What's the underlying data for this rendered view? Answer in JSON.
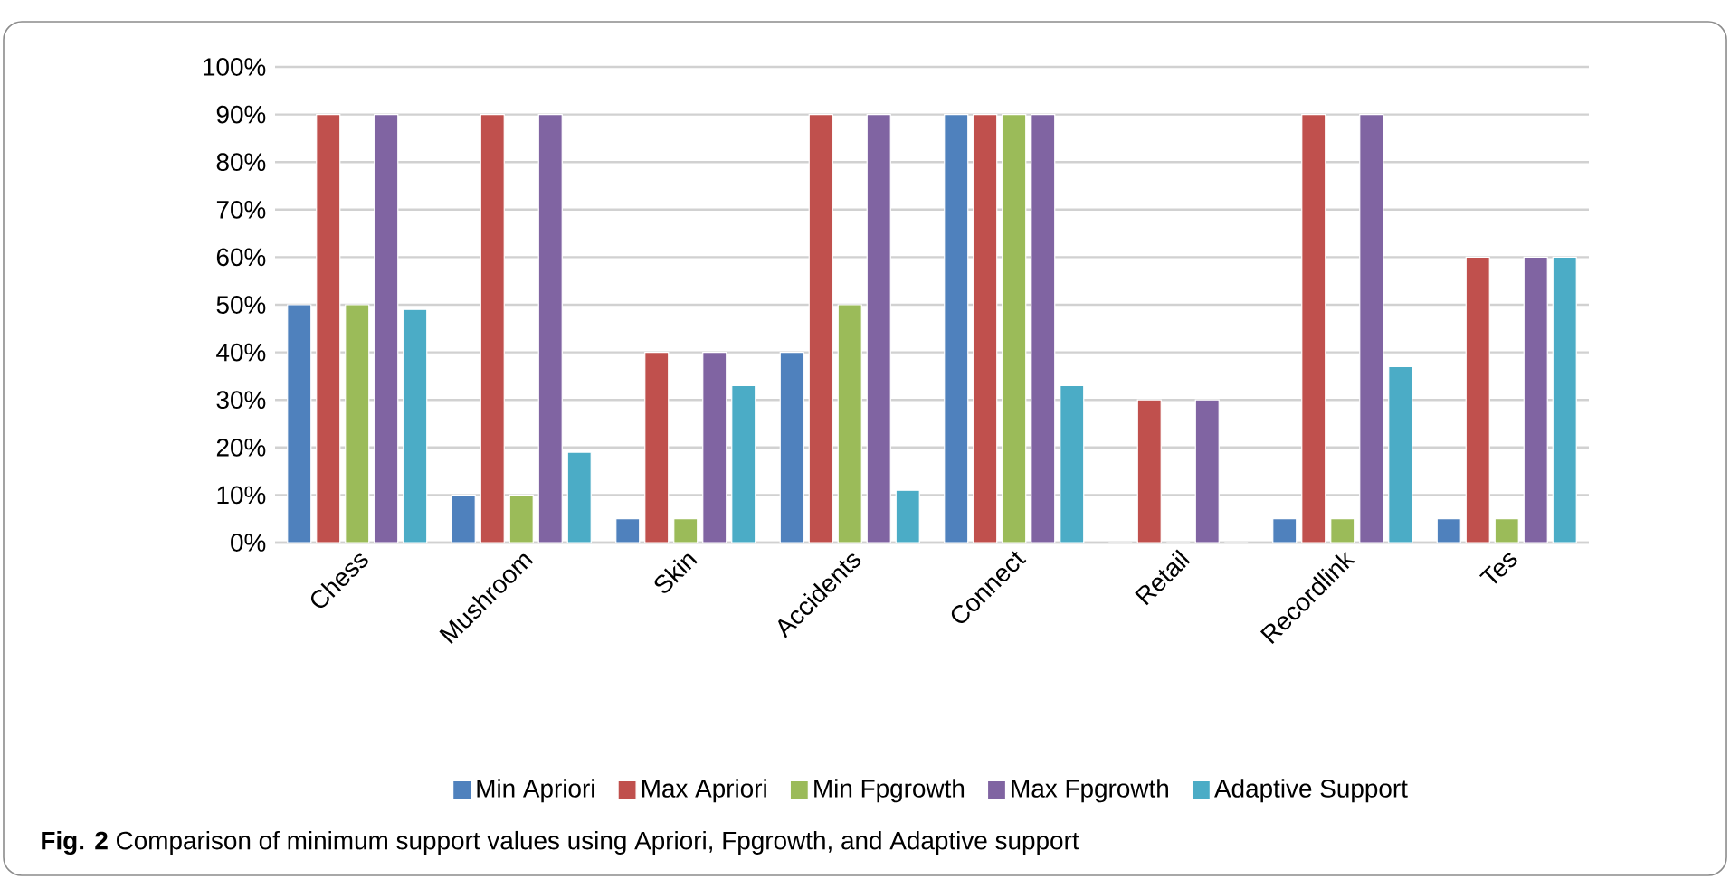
{
  "chart_data": {
    "type": "bar",
    "categories": [
      "Chess",
      "Mushroom",
      "Skin",
      "Accidents",
      "Connect",
      "Retail",
      "Recordlink",
      "Tes"
    ],
    "series": [
      {
        "name": "Min Apriori",
        "color": "#4f81bd",
        "values": [
          50,
          10,
          5,
          40,
          90,
          0,
          5,
          5
        ]
      },
      {
        "name": "Max Apriori",
        "color": "#c0504d",
        "values": [
          90,
          90,
          40,
          90,
          90,
          30,
          90,
          60
        ]
      },
      {
        "name": "Min Fpgrowth",
        "color": "#9bbb59",
        "values": [
          50,
          10,
          5,
          50,
          90,
          0,
          5,
          5
        ]
      },
      {
        "name": "Max Fpgrowth",
        "color": "#8064a2",
        "values": [
          90,
          90,
          40,
          90,
          90,
          30,
          90,
          60
        ]
      },
      {
        "name": "Adaptive Support",
        "color": "#4bacc6",
        "values": [
          49,
          19,
          33,
          11,
          33,
          0,
          37,
          60
        ]
      }
    ],
    "ylim": [
      0,
      100
    ],
    "yticks": [
      {
        "value": 0,
        "label": "0%"
      },
      {
        "value": 10,
        "label": "10%"
      },
      {
        "value": 20,
        "label": "20%"
      },
      {
        "value": 30,
        "label": "30%"
      },
      {
        "value": 40,
        "label": "40%"
      },
      {
        "value": 50,
        "label": "50%"
      },
      {
        "value": 60,
        "label": "60%"
      },
      {
        "value": 70,
        "label": "70%"
      },
      {
        "value": 80,
        "label": "80%"
      },
      {
        "value": 90,
        "label": "90%"
      },
      {
        "value": 100,
        "label": "100%"
      }
    ],
    "grid": "y",
    "legend": "bottom",
    "annotations": [
      "**Fig. 2**  Comparison of minimum support values using Apriori, Fpgrowth, and Adaptive support"
    ]
  }
}
